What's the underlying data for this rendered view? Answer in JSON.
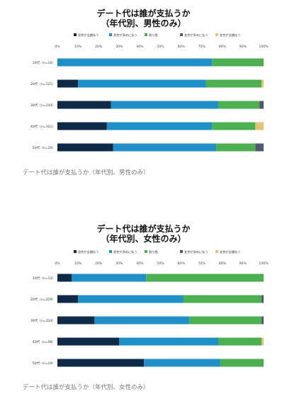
{
  "chart_data": [
    {
      "type": "bar",
      "orientation": "horizontal-stacked-100",
      "title": "デート代は誰が支払うか",
      "subtitle": "（年代別、男性のみ）",
      "xlim": [
        0,
        100
      ],
      "x_ticks": [
        "0%",
        "10%",
        "20%",
        "30%",
        "40%",
        "50%",
        "60%",
        "70%",
        "80%",
        "90%",
        "100%"
      ],
      "legend_position": "top",
      "categories": [
        "10代（n=16）",
        "20代（n=121）",
        "30代（n=144）",
        "40代（n=101）",
        "50代（n=26）"
      ],
      "series": [
        {
          "name": "男性が全額払う",
          "color": "#0f2a47",
          "values": [
            0,
            10,
            26,
            24,
            27
          ]
        },
        {
          "name": "男性が多めに払う",
          "color": "#1f8fc7",
          "values": [
            75,
            62,
            52,
            51,
            50
          ]
        },
        {
          "name": "割り勘",
          "color": "#4caf50",
          "values": [
            25,
            27,
            20,
            21,
            19
          ]
        },
        {
          "name": "女性が多めに払う",
          "color": "#4f5870",
          "values": [
            0,
            0,
            2,
            0,
            4
          ]
        },
        {
          "name": "女性が全額払う",
          "color": "#e2c472",
          "values": [
            0,
            1,
            0,
            4,
            0
          ]
        }
      ],
      "grid": false
    },
    {
      "type": "bar",
      "orientation": "horizontal-stacked-100",
      "title": "デート代は誰が支払うか",
      "subtitle": "（年代別、女性のみ）",
      "xlim": [
        0,
        100
      ],
      "x_ticks": [
        "0%",
        "10%",
        "20%",
        "30%",
        "40%",
        "50%",
        "60%",
        "70%",
        "80%",
        "90%",
        "100%"
      ],
      "legend_position": "top",
      "categories": [
        "10代（n=14）",
        "20代（n=329）",
        "30代（n=334）",
        "40代（n=98）",
        "50代（n=19）"
      ],
      "series": [
        {
          "name": "男性が全額払う",
          "color": "#0f2a47",
          "values": [
            7,
            10,
            18,
            30,
            42
          ]
        },
        {
          "name": "男性が多めに払う",
          "color": "#1f8fc7",
          "values": [
            36,
            51,
            46,
            48,
            37
          ]
        },
        {
          "name": "割り勘",
          "color": "#4caf50",
          "values": [
            57,
            38,
            35,
            21,
            21
          ]
        },
        {
          "name": "女性が多めに払う",
          "color": "#4f5870",
          "values": [
            0,
            1,
            1,
            0,
            0
          ]
        },
        {
          "name": "女性が全額払う",
          "color": "#e2c472",
          "values": [
            0,
            0,
            0,
            1,
            0
          ]
        }
      ],
      "grid": false
    }
  ],
  "captions": [
    "デート代は誰が支払うか（年代別、男性のみ）",
    "デート代は誰が支払うか（年代別、女性のみ）"
  ]
}
